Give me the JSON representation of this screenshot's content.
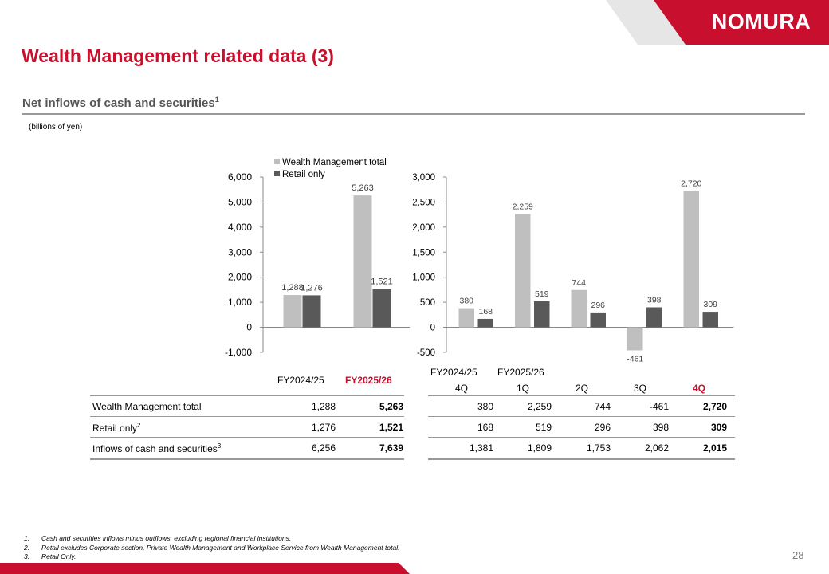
{
  "header": {
    "logo_text": "NOMURA",
    "title": "Wealth Management related data (3)",
    "section_title": "Net inflows of cash and securities",
    "section_title_sup": "1",
    "unit_label": "(billions of yen)"
  },
  "colors": {
    "brand_red": "#c8102e",
    "series_total": "#bfbfbf",
    "series_retail": "#595959"
  },
  "chart_data": [
    {
      "type": "bar",
      "categories": [
        "FY2024/25",
        "FY2025/26"
      ],
      "series": [
        {
          "name": "Wealth Management total",
          "values": [
            1288,
            5263
          ]
        },
        {
          "name": "Retail only",
          "values": [
            1276,
            1521
          ]
        }
      ],
      "data_labels": [
        [
          "1,288",
          "5,263"
        ],
        [
          "1,276",
          "1,521"
        ]
      ],
      "ylim": [
        -1000,
        6000
      ],
      "yticks": [
        -1000,
        0,
        1000,
        2000,
        3000,
        4000,
        5000,
        6000
      ],
      "ytick_labels": [
        "-1,000",
        "0",
        "1,000",
        "2,000",
        "3,000",
        "4,000",
        "5,000",
        "6,000"
      ],
      "legend": "top",
      "grid": false
    },
    {
      "type": "bar",
      "categories": [
        "4Q",
        "1Q",
        "2Q",
        "3Q",
        "4Q"
      ],
      "series": [
        {
          "name": "Wealth Management total",
          "values": [
            380,
            2259,
            744,
            -461,
            2720
          ]
        },
        {
          "name": "Retail only",
          "values": [
            168,
            519,
            296,
            398,
            309
          ]
        }
      ],
      "data_labels": [
        [
          "380",
          "2,259",
          "744",
          "-461",
          "2,720"
        ],
        [
          "168",
          "519",
          "296",
          "398",
          "309"
        ]
      ],
      "ylim": [
        -500,
        3000
      ],
      "yticks": [
        -500,
        0,
        500,
        1000,
        1500,
        2000,
        2500,
        3000
      ],
      "ytick_labels": [
        "-500",
        "0",
        "500",
        "1,000",
        "1,500",
        "2,000",
        "2,500",
        "3,000"
      ],
      "grid": false
    }
  ],
  "table": {
    "fy_headers": [
      "FY2024/25",
      "FY2025/26"
    ],
    "q_group_headers": [
      "FY2024/25",
      "FY2025/26"
    ],
    "q_headers": [
      "4Q",
      "1Q",
      "2Q",
      "3Q",
      "4Q"
    ],
    "rows": [
      {
        "label": "Wealth Management total",
        "sup": "",
        "fy": [
          "1,288",
          "5,263"
        ],
        "q": [
          "380",
          "2,259",
          "744",
          "-461",
          "2,720"
        ]
      },
      {
        "label": "Retail only",
        "sup": "2",
        "fy": [
          "1,276",
          "1,521"
        ],
        "q": [
          "168",
          "519",
          "296",
          "398",
          "309"
        ]
      },
      {
        "label": "Inflows of cash and securities",
        "sup": "3",
        "fy": [
          "6,256",
          "7,639"
        ],
        "q": [
          "1,381",
          "1,809",
          "1,753",
          "2,062",
          "2,015"
        ]
      }
    ]
  },
  "footnotes": [
    {
      "num": "1.",
      "text": "Cash and securities inflows minus outflows, excluding regional financial institutions."
    },
    {
      "num": "2.",
      "text": "Retail excludes Corporate section, Private Wealth Management and Workplace Service from Wealth Management total."
    },
    {
      "num": "3.",
      "text": "Retail Only."
    }
  ],
  "page_number": "28"
}
